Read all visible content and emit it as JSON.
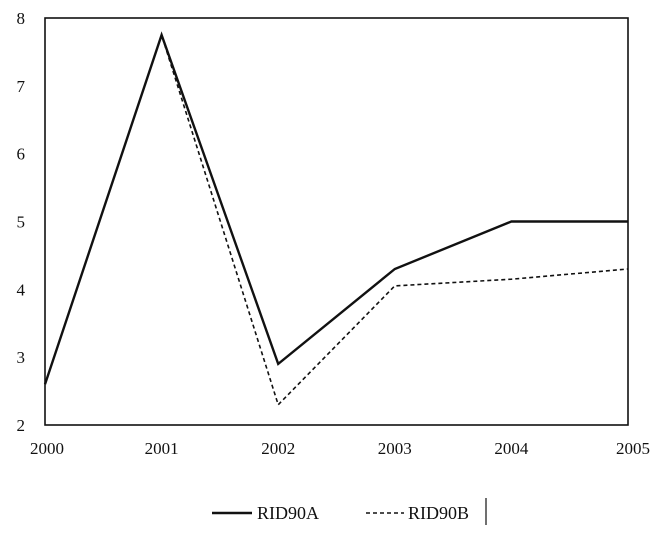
{
  "chart_data": {
    "type": "line",
    "x": [
      "2000",
      "2001",
      "2002",
      "2003",
      "2004",
      "2005"
    ],
    "series": [
      {
        "name": "RID90A",
        "values": [
          2.6,
          7.75,
          2.9,
          4.3,
          5.0,
          5.0
        ],
        "color": "#111111",
        "dash": "solid"
      },
      {
        "name": "RID90B",
        "values": [
          2.6,
          7.75,
          2.3,
          4.05,
          4.15,
          4.3
        ],
        "color": "#111111",
        "dash": "dashed"
      }
    ],
    "ylim": [
      2,
      8
    ],
    "yticks": [
      2,
      3,
      4,
      5,
      6,
      7,
      8
    ],
    "grid": false,
    "legend_position": "bottom-center",
    "title": "",
    "xlabel": "",
    "ylabel": ""
  }
}
